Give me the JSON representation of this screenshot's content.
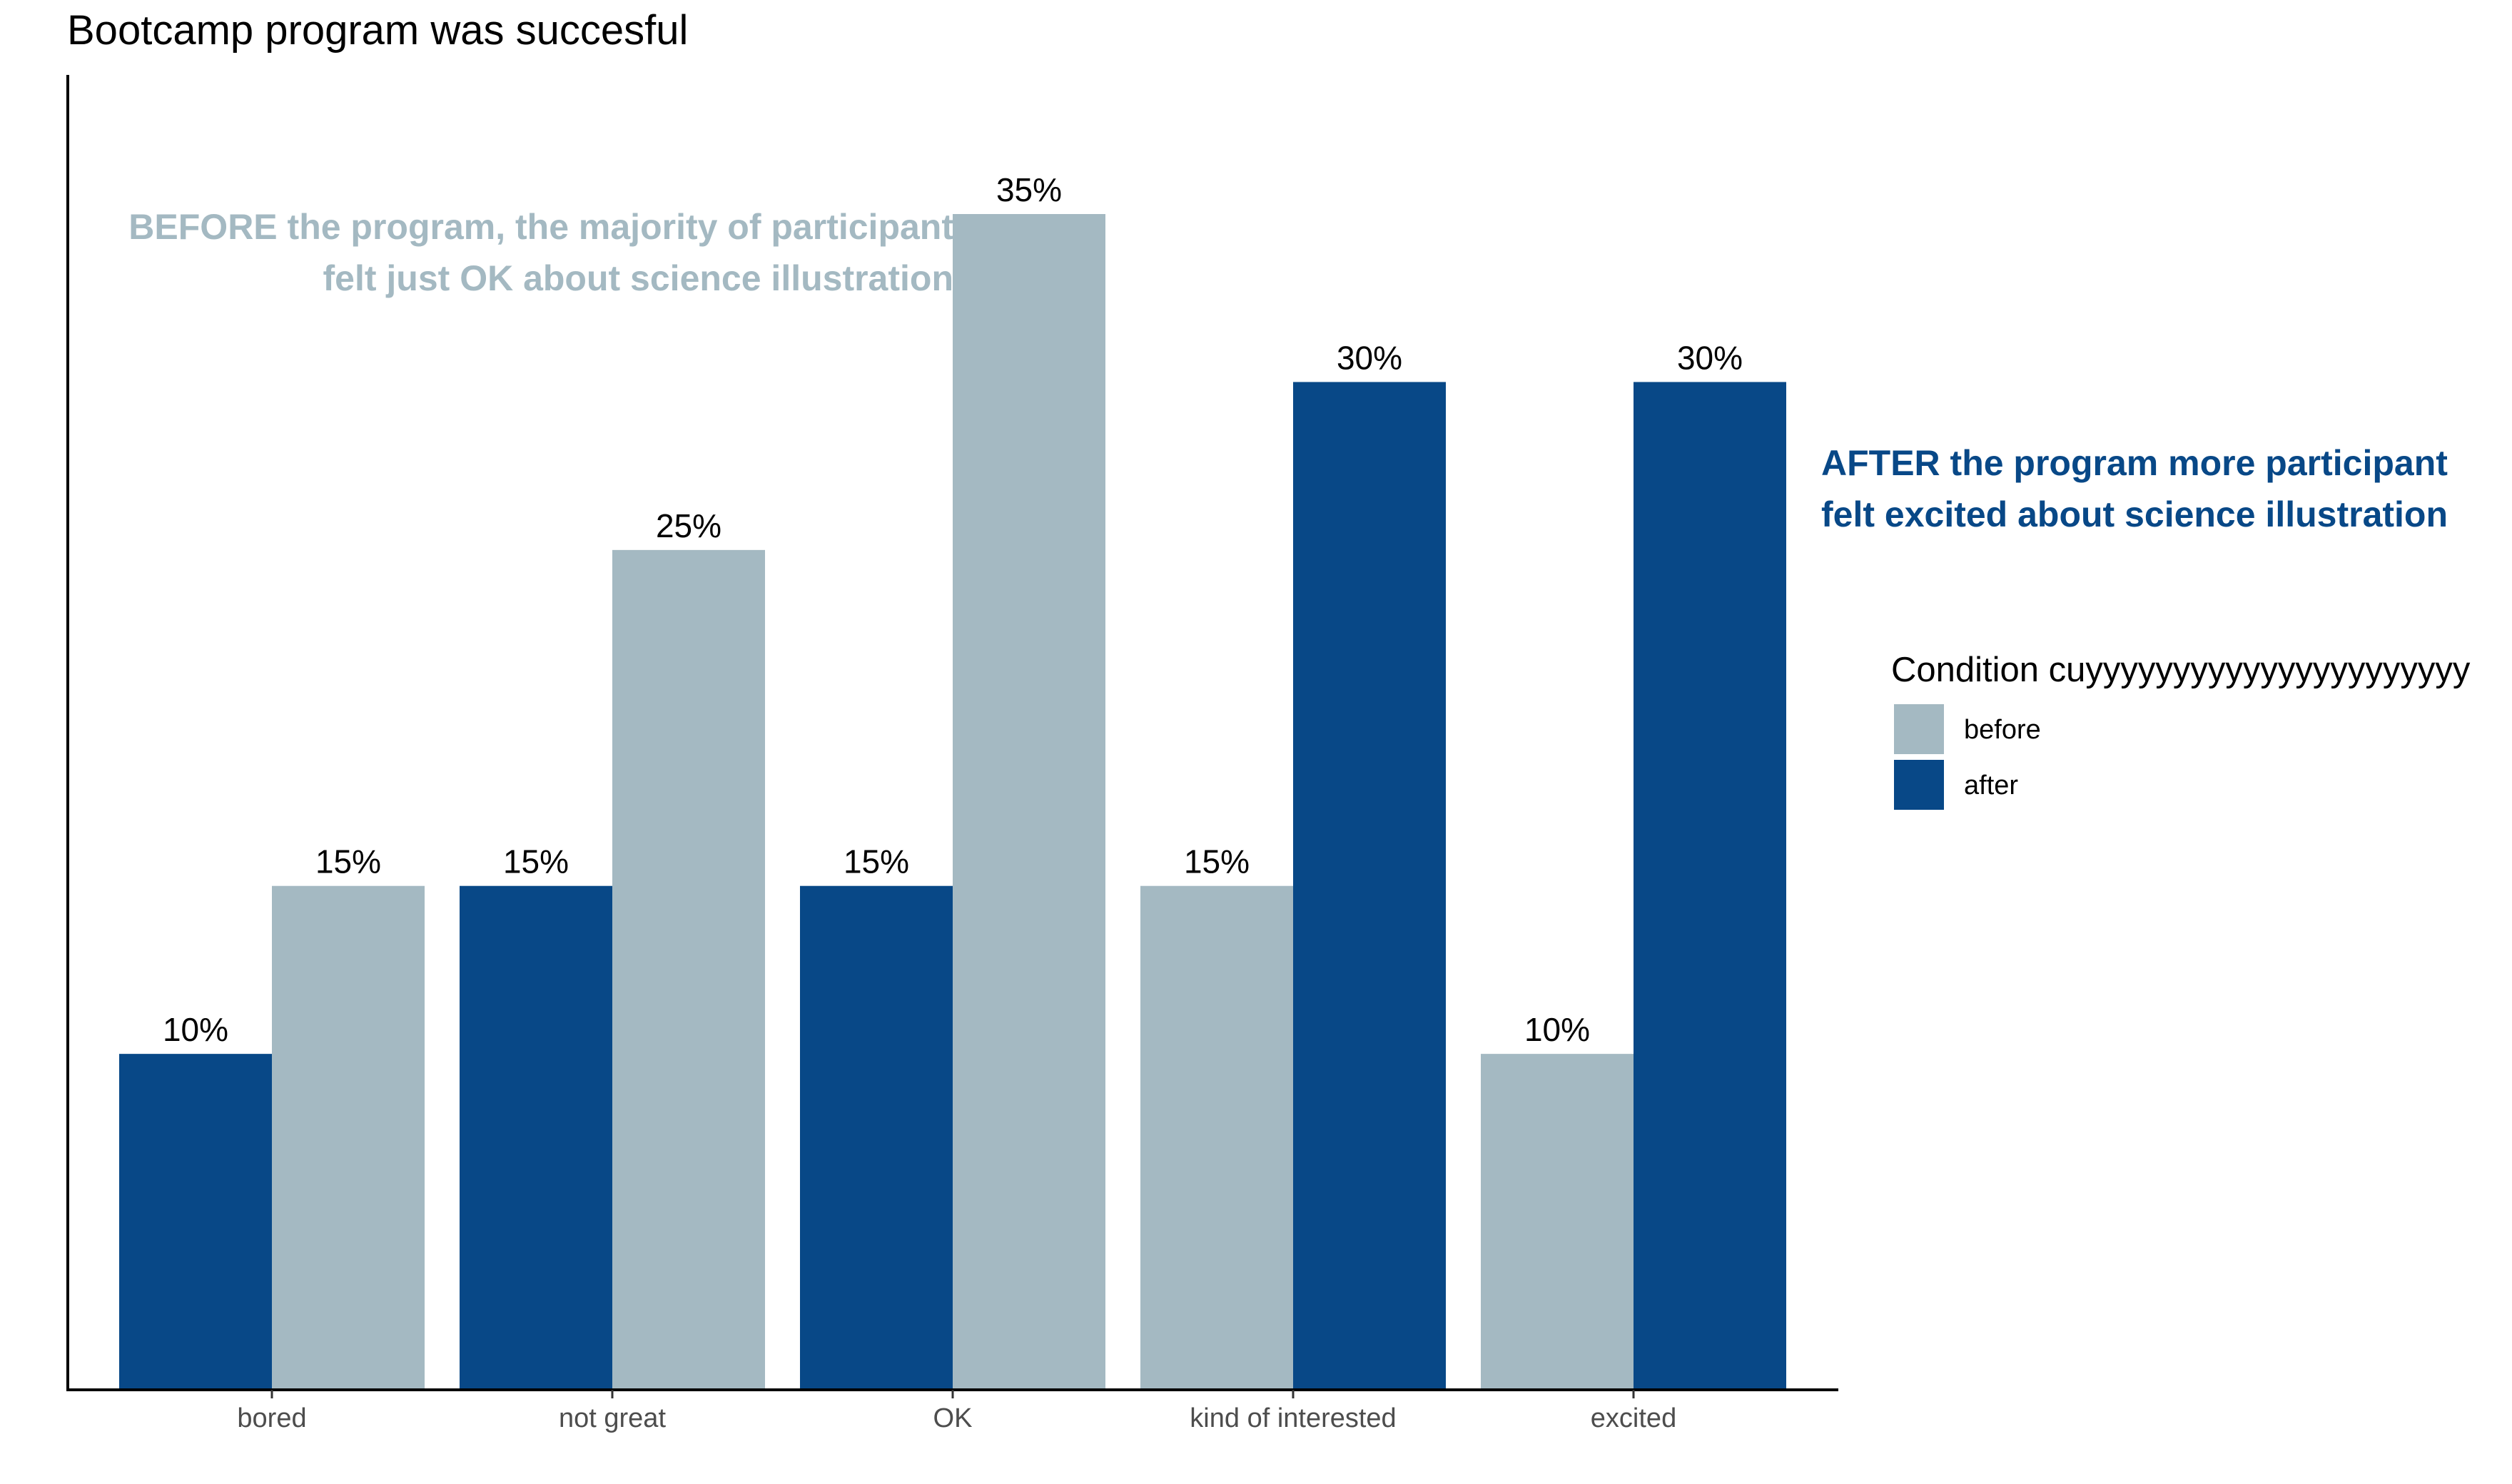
{
  "chart_data": {
    "type": "bar",
    "title": "Bootcamp program was succesful",
    "categories": [
      "bored",
      "not great",
      "OK",
      "kind of interested",
      "excited"
    ],
    "series": [
      {
        "name": "after",
        "values": [
          10,
          15,
          15,
          30,
          30
        ]
      },
      {
        "name": "before",
        "values": [
          15,
          25,
          35,
          15,
          10
        ]
      }
    ],
    "bars": [
      {
        "category": "bored",
        "left": "after",
        "left_value": 10,
        "right": "before",
        "right_value": 15
      },
      {
        "category": "not great",
        "left": "after",
        "left_value": 15,
        "right": "before",
        "right_value": 25
      },
      {
        "category": "OK",
        "left": "after",
        "left_value": 15,
        "right": "before",
        "right_value": 35
      },
      {
        "category": "kind of interested",
        "left": "before",
        "left_value": 15,
        "right": "after",
        "right_value": 30
      },
      {
        "category": "excited",
        "left": "before",
        "left_value": 10,
        "right": "after",
        "right_value": 30
      }
    ],
    "value_format": "{v}%",
    "xlabel": "",
    "ylabel": "",
    "ylim": [
      0,
      35
    ],
    "grid": false,
    "legend": {
      "title": "Condition cuyyyyyyyyyyyyyyyyyyyyyy",
      "position": "right",
      "entries": [
        {
          "name": "before",
          "color": "#a4b9c2"
        },
        {
          "name": "after",
          "color": "#084887"
        }
      ]
    },
    "annotations": [
      {
        "lines": [
          "BEFORE the program, the majority of participant",
          "felt just OK about science illustration"
        ],
        "color": "#a4b9c2"
      },
      {
        "lines": [
          "AFTER the program more participant",
          "felt excited about science illustration"
        ],
        "color": "#084887"
      }
    ]
  },
  "colors": {
    "before": "#a4b9c2",
    "after": "#084887",
    "axis": "#000000",
    "tick_text": "#4d4d4d"
  }
}
